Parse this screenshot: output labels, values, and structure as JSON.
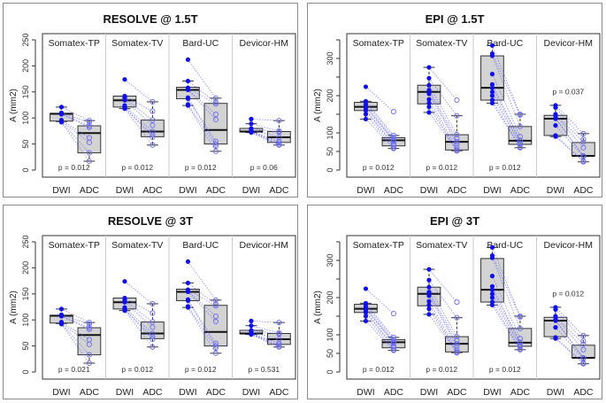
{
  "chart_data": [
    {
      "type": "box",
      "title": "RESOLVE @ 1.5T",
      "ylabel": "A (mm2)",
      "ylim": [
        0,
        250
      ],
      "yticks": [
        0,
        50,
        100,
        150,
        200,
        250
      ],
      "ytick_labels": [
        "0",
        "50",
        "100",
        "150",
        "200",
        "250"
      ],
      "groups": [
        "DWI",
        "ADC"
      ],
      "facets": [
        {
          "name": "Somatex-TP",
          "p": "p = 0.012",
          "DWI": {
            "min": 93,
            "q1": 94,
            "median": 108,
            "q3": 109,
            "max": 121,
            "points": [
              121,
              110,
              108,
              107,
              96,
              94,
              93,
              92
            ]
          },
          "ADC": {
            "min": 17,
            "q1": 33,
            "median": 71,
            "q3": 85,
            "max": 95,
            "points": [
              95,
              92,
              85,
              82,
              62,
              53,
              33,
              17
            ]
          }
        },
        {
          "name": "Somatex-TV",
          "p": "p = 0.012",
          "DWI": {
            "min": 118,
            "q1": 121,
            "median": 134,
            "q3": 142,
            "max": 142,
            "points": [
              174,
              142,
              138,
              134,
              124,
              121,
              120,
              118
            ]
          },
          "ADC": {
            "min": 48,
            "q1": 64,
            "median": 74,
            "q3": 96,
            "max": 131,
            "points": [
              131,
              113,
              96,
              86,
              74,
              68,
              63,
              48
            ]
          }
        },
        {
          "name": "Bard-UC",
          "p": "p = 0.012",
          "DWI": {
            "min": 124,
            "q1": 137,
            "median": 154,
            "q3": 159,
            "max": 171,
            "points": [
              212,
              171,
              158,
              155,
              154,
              139,
              137,
              126,
              124
            ]
          },
          "ADC": {
            "min": 36,
            "q1": 50,
            "median": 77,
            "q3": 128,
            "max": 138,
            "points": [
              138,
              130,
              127,
              107,
              97,
              55,
              50,
              46,
              36
            ]
          }
        },
        {
          "name": "Devicor-HM",
          "p": "p = 0.06",
          "DWI": {
            "min": 72,
            "q1": 73,
            "median": 74,
            "q3": 80,
            "max": 89,
            "points": [
              98,
              89,
              80,
              77,
              75,
              74,
              73,
              72
            ]
          },
          "ADC": {
            "min": 48,
            "q1": 53,
            "median": 63,
            "q3": 74,
            "max": 95,
            "points": [
              95,
              75,
              73,
              63,
              55,
              52,
              49,
              48
            ]
          }
        }
      ]
    },
    {
      "type": "box",
      "title": "EPI @ 1.5T",
      "ylabel": "A (mm2)",
      "ylim": [
        0,
        350
      ],
      "yticks": [
        0,
        50,
        100,
        150,
        200,
        250,
        300,
        350
      ],
      "ytick_labels": [
        "0",
        "50",
        "100",
        "",
        "200",
        "",
        "300",
        ""
      ],
      "groups": [
        "DWI",
        "ADC"
      ],
      "facets": [
        {
          "name": "Somatex-TP",
          "p": "p = 0.012",
          "DWI": {
            "min": 137,
            "q1": 160,
            "median": 170,
            "q3": 182,
            "max": 185,
            "points": [
              224,
              185,
              182,
              175,
              170,
              168,
              162,
              160,
              150,
              137
            ]
          },
          "ADC": {
            "min": 58,
            "q1": 65,
            "median": 80,
            "q3": 87,
            "max": 93,
            "points": [
              157,
              93,
              87,
              82,
              80,
              78,
              70,
              65,
              60,
              58
            ]
          }
        },
        {
          "name": "Somatex-TV",
          "p": "p = 0.012",
          "DWI": {
            "min": 155,
            "q1": 178,
            "median": 210,
            "q3": 228,
            "max": 276,
            "points": [
              276,
              247,
              228,
              215,
              210,
              205,
              190,
              180,
              170,
              155
            ]
          },
          "ADC": {
            "min": 52,
            "q1": 54,
            "median": 76,
            "q3": 95,
            "max": 146,
            "points": [
              188,
              146,
              95,
              85,
              76,
              70,
              60,
              54,
              52,
              52
            ]
          }
        },
        {
          "name": "Bard-UC",
          "p": "p = 0.012",
          "DWI": {
            "min": 180,
            "q1": 188,
            "median": 221,
            "q3": 307,
            "max": 335,
            "points": [
              335,
              313,
              307,
              258,
              230,
              221,
              210,
              200,
              188,
              180
            ]
          },
          "ADC": {
            "min": 60,
            "q1": 69,
            "median": 79,
            "q3": 117,
            "max": 150,
            "points": [
              150,
              148,
              117,
              90,
              80,
              79,
              72,
              69,
              62,
              60
            ]
          }
        },
        {
          "name": "Devicor-HM",
          "p": "p = 0.037",
          "p_position": "top",
          "DWI": {
            "min": 90,
            "q1": 93,
            "median": 138,
            "q3": 147,
            "max": 174,
            "points": [
              174,
              168,
              150,
              147,
              140,
              138,
              120,
              93,
              90
            ]
          },
          "ADC": {
            "min": 22,
            "q1": 38,
            "median": 38,
            "q3": 74,
            "max": 98,
            "points": [
              98,
              83,
              75,
              60,
              38,
              38,
              36,
              24,
              22
            ]
          }
        }
      ]
    },
    {
      "type": "box",
      "title": "RESOLVE @ 3T",
      "ylabel": "A (mm2)",
      "ylim": [
        0,
        250
      ],
      "yticks": [
        0,
        50,
        100,
        150,
        200,
        250
      ],
      "ytick_labels": [
        "0",
        "50",
        "100",
        "150",
        "200",
        "250"
      ],
      "groups": [
        "DWI",
        "ADC"
      ],
      "facets": [
        {
          "name": "Somatex-TP",
          "p": "p = 0.021",
          "DWI": {
            "min": 93,
            "q1": 94,
            "median": 108,
            "q3": 109,
            "max": 121,
            "points": [
              121,
              110,
              108,
              107,
              96,
              94,
              93,
              92
            ]
          },
          "ADC": {
            "min": 17,
            "q1": 33,
            "median": 71,
            "q3": 85,
            "max": 95,
            "points": [
              95,
              92,
              85,
              82,
              62,
              53,
              33,
              17
            ]
          }
        },
        {
          "name": "Somatex-TV",
          "p": "p = 0.012",
          "DWI": {
            "min": 118,
            "q1": 121,
            "median": 134,
            "q3": 142,
            "max": 142,
            "points": [
              174,
              142,
              138,
              134,
              124,
              121,
              120,
              118
            ]
          },
          "ADC": {
            "min": 48,
            "q1": 64,
            "median": 74,
            "q3": 96,
            "max": 131,
            "points": [
              131,
              113,
              96,
              86,
              74,
              68,
              63,
              48
            ]
          }
        },
        {
          "name": "Bard-UC",
          "p": "p = 0.012",
          "DWI": {
            "min": 124,
            "q1": 137,
            "median": 154,
            "q3": 159,
            "max": 171,
            "points": [
              212,
              171,
              158,
              155,
              154,
              139,
              137,
              126,
              124
            ]
          },
          "ADC": {
            "min": 36,
            "q1": 50,
            "median": 77,
            "q3": 128,
            "max": 138,
            "points": [
              138,
              130,
              127,
              107,
              97,
              55,
              50,
              46,
              36
            ]
          }
        },
        {
          "name": "Devicor-HM",
          "p": "p = 0.531",
          "DWI": {
            "min": 72,
            "q1": 73,
            "median": 74,
            "q3": 80,
            "max": 89,
            "points": [
              98,
              89,
              80,
              77,
              75,
              74,
              73,
              72
            ]
          },
          "ADC": {
            "min": 48,
            "q1": 53,
            "median": 63,
            "q3": 74,
            "max": 95,
            "points": [
              95,
              75,
              73,
              63,
              55,
              52,
              49,
              48
            ]
          }
        }
      ]
    },
    {
      "type": "box",
      "title": "EPI @ 3T",
      "ylabel": "A (mm2)",
      "ylim": [
        0,
        350
      ],
      "yticks": [
        0,
        50,
        100,
        150,
        200,
        250,
        300,
        350
      ],
      "ytick_labels": [
        "0",
        "50",
        "100",
        "",
        "200",
        "",
        "300",
        ""
      ],
      "groups": [
        "DWI",
        "ADC"
      ],
      "facets": [
        {
          "name": "Somatex-TP",
          "p": "p = 0.012",
          "DWI": {
            "min": 137,
            "q1": 160,
            "median": 170,
            "q3": 182,
            "max": 185,
            "points": [
              224,
              185,
              182,
              175,
              170,
              168,
              162,
              160,
              150,
              137
            ]
          },
          "ADC": {
            "min": 58,
            "q1": 65,
            "median": 80,
            "q3": 87,
            "max": 93,
            "points": [
              157,
              93,
              87,
              82,
              80,
              78,
              70,
              65,
              60,
              58
            ]
          }
        },
        {
          "name": "Somatex-TV",
          "p": "p = 0.012",
          "DWI": {
            "min": 155,
            "q1": 178,
            "median": 210,
            "q3": 228,
            "max": 276,
            "points": [
              276,
              247,
              228,
              215,
              210,
              205,
              190,
              180,
              170,
              155
            ]
          },
          "ADC": {
            "min": 52,
            "q1": 54,
            "median": 76,
            "q3": 95,
            "max": 146,
            "points": [
              188,
              146,
              95,
              85,
              76,
              70,
              60,
              54,
              52,
              52
            ]
          }
        },
        {
          "name": "Bard-UC",
          "p": "p = 0.012",
          "DWI": {
            "min": 180,
            "q1": 188,
            "median": 221,
            "q3": 305,
            "max": 335,
            "points": [
              335,
              313,
              307,
              258,
              230,
              221,
              210,
              200,
              188,
              180
            ]
          },
          "ADC": {
            "min": 60,
            "q1": 69,
            "median": 79,
            "q3": 117,
            "max": 150,
            "points": [
              150,
              148,
              117,
              90,
              80,
              79,
              72,
              69,
              62,
              60
            ]
          }
        },
        {
          "name": "Devicor-HM",
          "p": "p = 0.012",
          "p_position": "top",
          "DWI": {
            "min": 90,
            "q1": 95,
            "median": 138,
            "q3": 147,
            "max": 174,
            "points": [
              174,
              168,
              150,
              147,
              140,
              138,
              120,
              93,
              90
            ]
          },
          "ADC": {
            "min": 22,
            "q1": 38,
            "median": 38,
            "q3": 72,
            "max": 98,
            "points": [
              98,
              83,
              75,
              60,
              38,
              38,
              36,
              24,
              22
            ]
          }
        }
      ]
    }
  ],
  "colors": {
    "dwi_point": "#1010ee",
    "adc_point": "#6a6af0",
    "box_fill": "#d3d3d3",
    "line": "#5a5aff"
  }
}
